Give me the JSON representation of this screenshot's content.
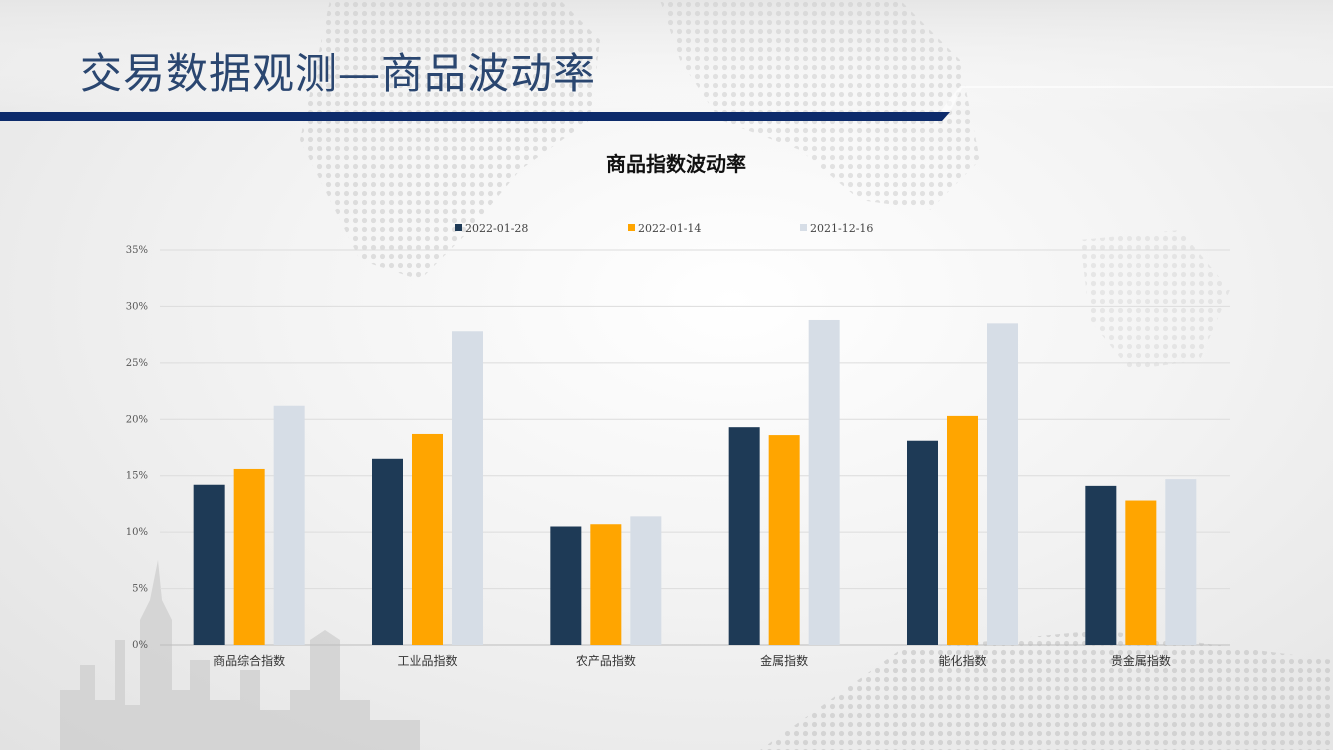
{
  "slide": {
    "title": "交易数据观测—商品波动率"
  },
  "colors": {
    "header_bar": "#0d2b6b",
    "series": [
      "#1e3a56",
      "#ffa500",
      "#d6dde6"
    ]
  },
  "chart_data": {
    "type": "bar",
    "title": "商品指数波动率",
    "categories": [
      "商品综合指数",
      "工业品指数",
      "农产品指数",
      "金属指数",
      "能化指数",
      "贵金属指数"
    ],
    "series": [
      {
        "name": "2022-01-28",
        "values": [
          14.2,
          16.5,
          10.5,
          19.3,
          18.1,
          14.1
        ]
      },
      {
        "name": "2022-01-14",
        "values": [
          15.6,
          18.7,
          10.7,
          18.6,
          20.3,
          12.8
        ]
      },
      {
        "name": "2021-12-16",
        "values": [
          21.2,
          27.8,
          11.4,
          28.8,
          28.5,
          14.7
        ]
      }
    ],
    "y_ticks": [
      "0%",
      "5%",
      "10%",
      "15%",
      "20%",
      "25%",
      "30%",
      "35%"
    ],
    "ylim": [
      0,
      35
    ],
    "grid": true,
    "legend_position": "top"
  }
}
